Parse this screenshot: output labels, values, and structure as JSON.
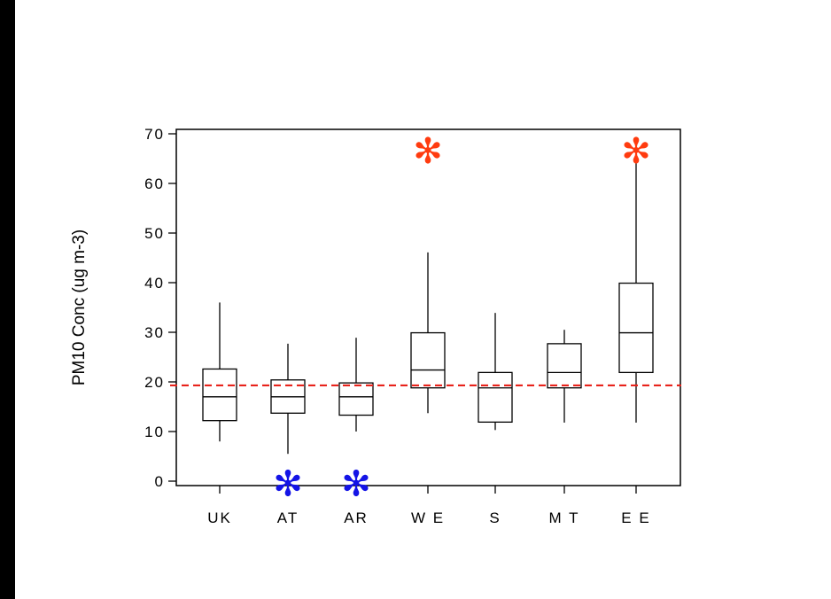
{
  "chart_data": {
    "type": "box",
    "title": "",
    "xlabel": "",
    "ylabel": "PM10 Conc (ug m-3)",
    "ylim": [
      0,
      70
    ],
    "yticks": [
      0,
      10,
      20,
      30,
      40,
      50,
      60,
      70
    ],
    "reference_line": {
      "value": 19.3,
      "style": "dashed",
      "color": "#e8231b"
    },
    "categories": [
      "UK",
      "AT",
      "AR",
      "W E",
      "S",
      "M T",
      "E E"
    ],
    "boxes": [
      {
        "category": "UK",
        "min": 8,
        "q1": 12.2,
        "median": 17,
        "q3": 22.6,
        "max": 36
      },
      {
        "category": "AT",
        "min": 5.5,
        "q1": 13.7,
        "median": 17,
        "q3": 20.4,
        "max": 27.7
      },
      {
        "category": "AR",
        "min": 10,
        "q1": 13.3,
        "median": 17,
        "q3": 19.8,
        "max": 28.9
      },
      {
        "category": "W E",
        "min": 13.7,
        "q1": 18.8,
        "median": 22.4,
        "q3": 29.9,
        "max": 46.1
      },
      {
        "category": "S",
        "min": 10.3,
        "q1": 11.9,
        "median": 18.8,
        "q3": 21.9,
        "max": 33.9
      },
      {
        "category": "M T",
        "min": 11.8,
        "q1": 18.8,
        "median": 21.9,
        "q3": 27.7,
        "max": 30.5
      },
      {
        "category": "E E",
        "min": 11.8,
        "q1": 21.9,
        "median": 29.9,
        "q3": 39.9,
        "max": 66.8
      }
    ],
    "outliers": [
      {
        "category": "AT",
        "value": 1,
        "color": "#1414e6"
      },
      {
        "category": "AR",
        "value": 1,
        "color": "#1414e6"
      },
      {
        "category": "W E",
        "value": 68,
        "color": "#ff3b0f"
      },
      {
        "category": "E E",
        "value": 68,
        "color": "#ff3b0f"
      }
    ],
    "grid": false,
    "legend": "none"
  }
}
